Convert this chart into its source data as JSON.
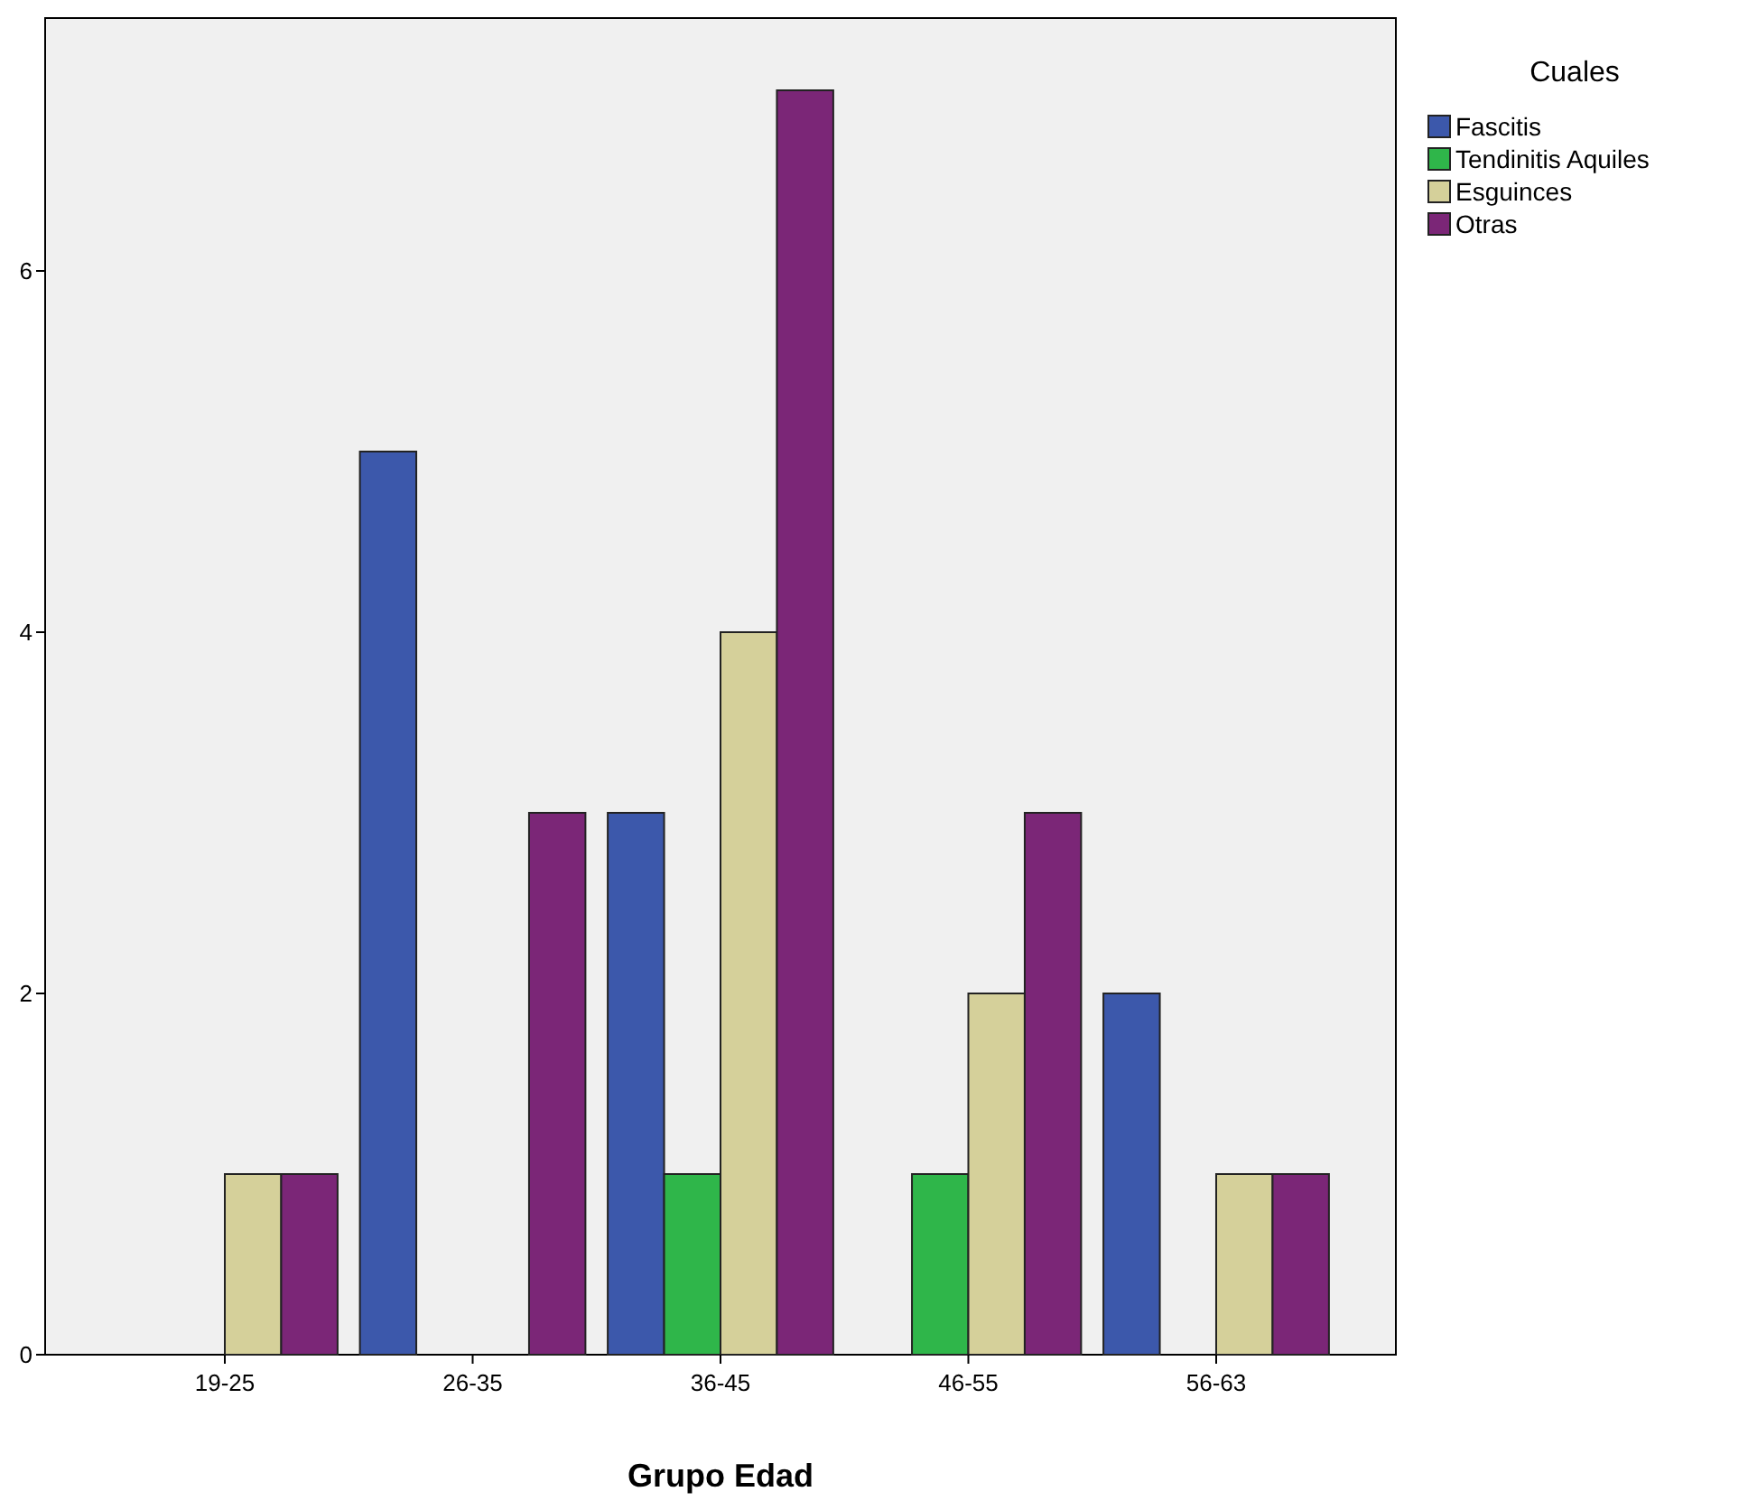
{
  "chart_data": {
    "type": "bar",
    "xlabel": "Grupo Edad",
    "legend_title": "Cuales",
    "legend": "top right",
    "grid": false,
    "categories": [
      "19-25",
      "26-35",
      "36-45",
      "46-55",
      "56-63"
    ],
    "series": [
      {
        "name": "Fascitis",
        "color": "#3c58ab",
        "values": [
          0,
          5,
          3,
          0,
          2
        ]
      },
      {
        "name": "Tendinitis Aquiles",
        "color": "#2fb64a",
        "values": [
          0,
          0,
          1,
          1,
          0
        ]
      },
      {
        "name": "Esguinces",
        "color": "#d5d09a",
        "values": [
          1,
          0,
          4,
          2,
          1
        ]
      },
      {
        "name": "Otras",
        "color": "#7b2677",
        "values": [
          1,
          3,
          7,
          3,
          1
        ]
      }
    ],
    "ylim": [
      0,
      7.4
    ],
    "yticks": [
      0,
      2,
      4,
      6
    ]
  }
}
